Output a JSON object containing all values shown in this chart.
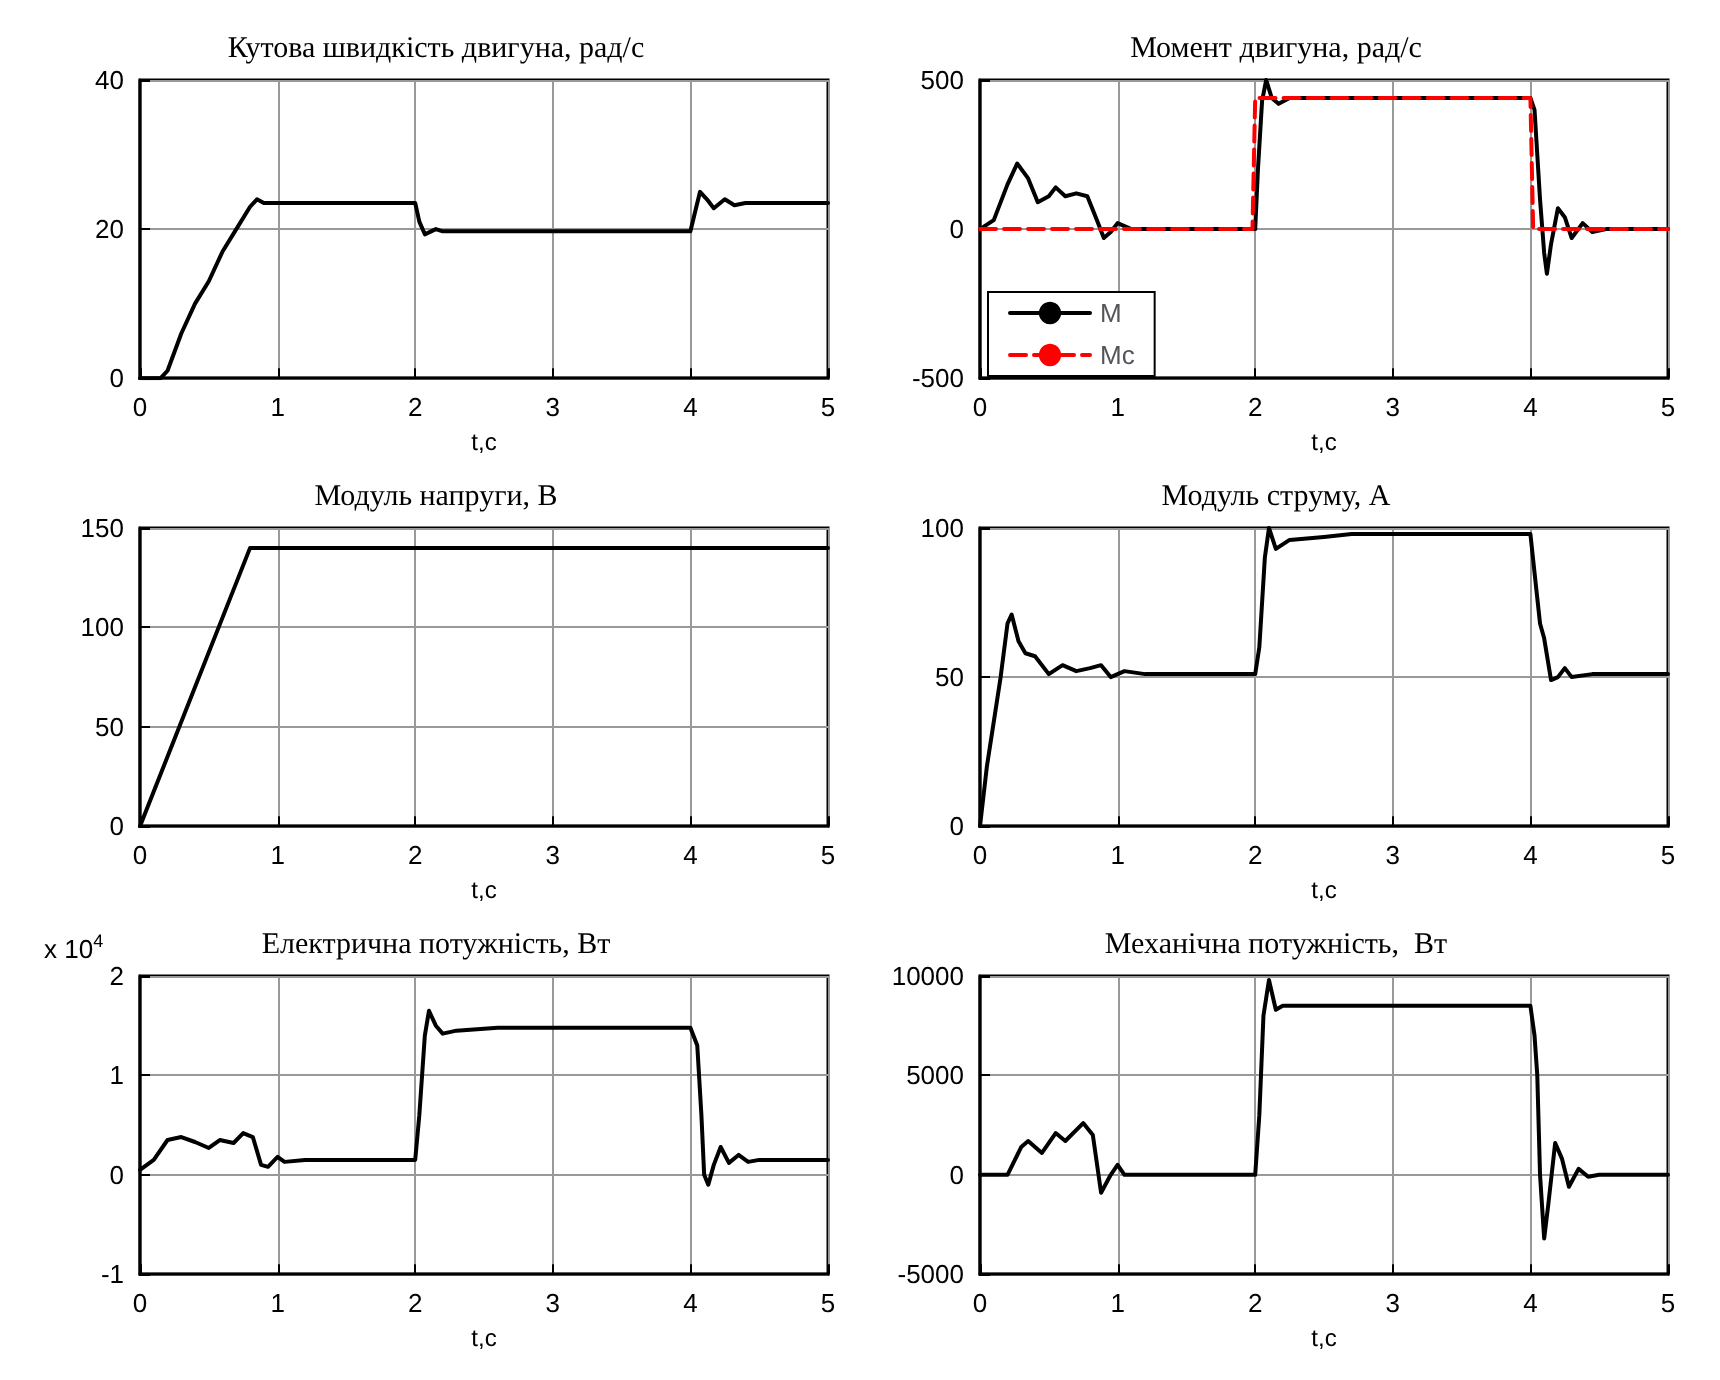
{
  "chart_data": [
    {
      "type": "line",
      "title": "Кутова швидкість двигуна, рад/с",
      "xlabel": "t,c",
      "xlim": [
        0,
        5
      ],
      "xticks": [
        0,
        1,
        2,
        3,
        4,
        5
      ],
      "ylim": [
        0,
        40
      ],
      "yticks": [
        0,
        20,
        40
      ],
      "grid": true,
      "marker": "none",
      "series": [
        {
          "color": "#000000",
          "line_style": "solid",
          "x": [
            0,
            0.15,
            0.2,
            0.3,
            0.4,
            0.5,
            0.6,
            0.7,
            0.8,
            0.85,
            0.9,
            1.0,
            2.0,
            2.03,
            2.07,
            2.15,
            2.2,
            2.3,
            4.0,
            4.03,
            4.07,
            4.12,
            4.17,
            4.25,
            4.32,
            4.4,
            5
          ],
          "values": [
            0,
            0,
            1,
            6,
            10,
            13,
            17,
            20,
            23,
            24,
            23.5,
            23.5,
            23.5,
            21,
            19.3,
            20,
            19.7,
            19.7,
            19.7,
            22,
            25,
            24,
            22.8,
            24,
            23.2,
            23.5,
            23.5
          ]
        }
      ]
    },
    {
      "type": "line",
      "title": "Момент двигуна, рад/с",
      "xlabel": "t,c",
      "xlim": [
        0,
        5
      ],
      "xticks": [
        0,
        1,
        2,
        3,
        4,
        5
      ],
      "ylim": [
        -500,
        500
      ],
      "yticks": [
        -500,
        0,
        500
      ],
      "grid": true,
      "marker": "none",
      "legend": "bottom left",
      "series": [
        {
          "name": "M",
          "color": "#000000",
          "line_style": "solid",
          "x": [
            0,
            0.1,
            0.2,
            0.27,
            0.35,
            0.42,
            0.5,
            0.55,
            0.62,
            0.7,
            0.78,
            0.85,
            0.9,
            0.95,
            1.0,
            1.1,
            2.0,
            2.02,
            2.05,
            2.08,
            2.12,
            2.17,
            2.25,
            4.0,
            4.03,
            4.07,
            4.1,
            4.12,
            4.15,
            4.2,
            4.25,
            4.3,
            4.38,
            4.45,
            4.55,
            5
          ],
          "values": [
            0,
            30,
            150,
            220,
            170,
            90,
            110,
            140,
            110,
            120,
            110,
            30,
            -30,
            -10,
            20,
            0,
            0,
            200,
            430,
            500,
            440,
            420,
            440,
            440,
            400,
            100,
            -80,
            -150,
            -50,
            70,
            40,
            -30,
            20,
            -10,
            0,
            0
          ]
        },
        {
          "name": "Mc",
          "color": "#ff0000",
          "line_style": "dashed",
          "x": [
            0,
            1.98,
            2.0,
            4.0,
            4.02,
            5
          ],
          "values": [
            0,
            0,
            440,
            440,
            0,
            0
          ]
        }
      ]
    },
    {
      "type": "line",
      "title": "Модуль напруги, В",
      "xlabel": "t,c",
      "xlim": [
        0,
        5
      ],
      "xticks": [
        0,
        1,
        2,
        3,
        4,
        5
      ],
      "ylim": [
        0,
        150
      ],
      "yticks": [
        0,
        50,
        100,
        150
      ],
      "grid": true,
      "marker": "none",
      "series": [
        {
          "color": "#000000",
          "line_style": "solid",
          "x": [
            0,
            0.8,
            5
          ],
          "values": [
            0,
            140,
            140
          ]
        }
      ]
    },
    {
      "type": "line",
      "title": "Модуль струму, А",
      "xlabel": "t,c",
      "xlim": [
        0,
        5
      ],
      "xticks": [
        0,
        1,
        2,
        3,
        4,
        5
      ],
      "ylim": [
        0,
        100
      ],
      "yticks": [
        0,
        50,
        100
      ],
      "grid": true,
      "marker": "none",
      "series": [
        {
          "color": "#000000",
          "line_style": "solid",
          "x": [
            0,
            0.05,
            0.15,
            0.2,
            0.23,
            0.28,
            0.33,
            0.4,
            0.5,
            0.6,
            0.7,
            0.8,
            0.88,
            0.95,
            1.05,
            1.2,
            2.0,
            2.03,
            2.07,
            2.1,
            2.15,
            2.25,
            2.5,
            2.7,
            4.0,
            4.03,
            4.07,
            4.1,
            4.15,
            4.2,
            4.25,
            4.3,
            4.45,
            4.55,
            5
          ],
          "values": [
            0,
            20,
            50,
            68,
            71,
            62,
            58,
            57,
            51,
            54,
            52,
            53,
            54,
            50,
            52,
            51,
            51,
            60,
            90,
            100,
            93,
            96,
            97,
            98,
            98,
            85,
            68,
            63,
            49,
            50,
            53,
            50,
            51,
            51,
            51
          ]
        }
      ]
    },
    {
      "type": "line",
      "title": "Електрична потужність, Вт",
      "xlabel": "t,c",
      "xlim": [
        0,
        5
      ],
      "xticks": [
        0,
        1,
        2,
        3,
        4,
        5
      ],
      "ylim": [
        -1,
        2
      ],
      "yticks": [
        -1,
        0,
        1,
        2
      ],
      "grid": true,
      "marker": "none",
      "annotations": [
        "x 10$^{4}$"
      ],
      "series": [
        {
          "color": "#000000",
          "line_style": "solid",
          "x": [
            0,
            0.1,
            0.2,
            0.3,
            0.4,
            0.5,
            0.58,
            0.68,
            0.75,
            0.82,
            0.88,
            0.93,
            1.0,
            1.05,
            1.2,
            2.0,
            2.03,
            2.07,
            2.1,
            2.15,
            2.2,
            2.3,
            2.6,
            4.0,
            4.05,
            4.08,
            4.1,
            4.13,
            4.17,
            4.22,
            4.28,
            4.35,
            4.42,
            4.5,
            5
          ],
          "values": [
            0.05,
            0.15,
            0.35,
            0.38,
            0.33,
            0.27,
            0.35,
            0.32,
            0.42,
            0.38,
            0.1,
            0.08,
            0.18,
            0.13,
            0.15,
            0.15,
            0.6,
            1.4,
            1.65,
            1.5,
            1.42,
            1.45,
            1.48,
            1.48,
            1.3,
            0.6,
            0.0,
            -0.1,
            0.1,
            0.28,
            0.12,
            0.2,
            0.13,
            0.15,
            0.15
          ]
        }
      ]
    },
    {
      "type": "line",
      "title": "Механічна потужність,  Вт",
      "xlabel": "t,c",
      "xlim": [
        0,
        5
      ],
      "xticks": [
        0,
        1,
        2,
        3,
        4,
        5
      ],
      "ylim": [
        -5000,
        10000
      ],
      "yticks": [
        -5000,
        0,
        5000,
        10000
      ],
      "grid": true,
      "marker": "none",
      "series": [
        {
          "color": "#000000",
          "line_style": "solid",
          "x": [
            0,
            0.2,
            0.3,
            0.35,
            0.45,
            0.55,
            0.62,
            0.75,
            0.82,
            0.88,
            0.95,
            1.0,
            1.05,
            2.0,
            2.03,
            2.06,
            2.1,
            2.15,
            2.2,
            4.0,
            4.03,
            4.05,
            4.07,
            4.1,
            4.13,
            4.18,
            4.23,
            4.28,
            4.35,
            4.42,
            4.5,
            5
          ],
          "values": [
            0,
            0,
            1400,
            1700,
            1100,
            2100,
            1700,
            2600,
            2000,
            -900,
            0,
            500,
            0,
            0,
            3000,
            8000,
            9800,
            8300,
            8500,
            8500,
            7000,
            5000,
            0,
            -3200,
            -1500,
            1600,
            800,
            -600,
            300,
            -100,
            0,
            0
          ]
        }
      ]
    }
  ]
}
